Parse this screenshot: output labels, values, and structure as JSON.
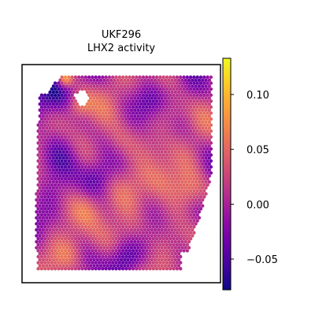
{
  "chart_data": {
    "type": "heatmap",
    "title": "UKF296",
    "subtitle": "LHX2 activity",
    "colormap": "plasma",
    "colorbar": {
      "vmin": -0.078,
      "vmax": 0.133,
      "tick_values": [
        0.1,
        0.05,
        0.0,
        -0.05
      ],
      "tick_labels": [
        "0.10",
        "0.05",
        "0.00",
        "−0.05"
      ]
    },
    "grid": false,
    "legend": "colorbar-right",
    "hotspots": [
      {
        "x": 0.1,
        "y": 0.92,
        "value": -0.07,
        "r": 0.07
      },
      {
        "x": 0.12,
        "y": 0.6,
        "value": -0.06,
        "r": 0.08
      },
      {
        "x": 0.5,
        "y": 0.05,
        "value": -0.05,
        "r": 0.06
      },
      {
        "x": 0.25,
        "y": 0.86,
        "value": 0.09,
        "r": 0.05
      },
      {
        "x": 0.48,
        "y": 0.66,
        "value": 0.07,
        "r": 0.07
      },
      {
        "x": 0.72,
        "y": 0.45,
        "value": 0.07,
        "r": 0.08
      },
      {
        "x": 0.88,
        "y": 0.4,
        "value": 0.08,
        "r": 0.07
      },
      {
        "x": 0.3,
        "y": 0.32,
        "value": 0.06,
        "r": 0.07
      },
      {
        "x": 0.55,
        "y": 0.2,
        "value": 0.06,
        "r": 0.07
      },
      {
        "x": 0.2,
        "y": 0.08,
        "value": 0.05,
        "r": 0.06
      },
      {
        "x": 0.78,
        "y": 0.82,
        "value": 0.05,
        "r": 0.06
      },
      {
        "x": 0.17,
        "y": 0.99,
        "value": 0.12,
        "r": 0.03
      },
      {
        "x": 0.35,
        "y": 0.48,
        "value": -0.04,
        "r": 0.06
      },
      {
        "x": 0.65,
        "y": 0.88,
        "value": -0.04,
        "r": 0.06
      }
    ]
  }
}
